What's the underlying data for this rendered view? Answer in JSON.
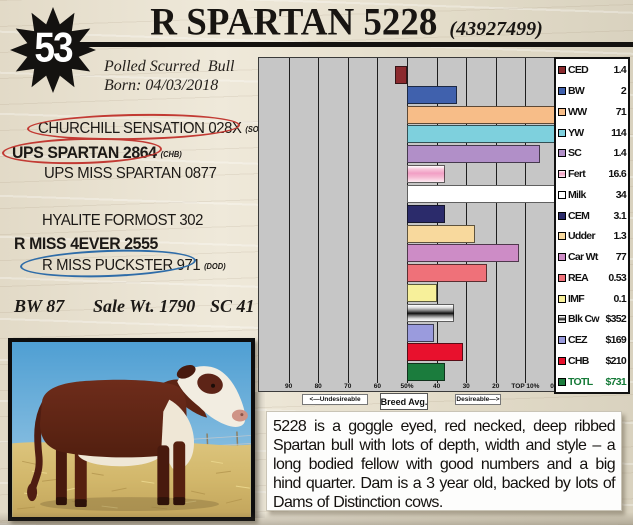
{
  "badge": {
    "lot_number": "53"
  },
  "header": {
    "title": "R SPARTAN 5228",
    "registration": "(43927499)"
  },
  "details": {
    "type_line": "Polled Scurred  Bull",
    "born_line": "Born: 04/03/2018"
  },
  "pedigree": {
    "sire_top": {
      "name": "CHURCHILL SENSATION 028X",
      "tag": "(SOD)"
    },
    "sire": {
      "name": "UPS SPARTAN 2864",
      "tag": "(CHB)"
    },
    "sire_dam": {
      "name": "UPS MISS SPARTAN 0877"
    },
    "dam_sire": {
      "name": "HYALITE FORMOST 302"
    },
    "dam": {
      "name": "R MISS 4EVER 2555"
    },
    "dam_dam": {
      "name": "R MISS PUCKSTER 971",
      "tag": "(DOD)"
    }
  },
  "stats": {
    "bw_label": "BW",
    "bw_value": "87",
    "wt_label": "Sale Wt.",
    "wt_value": "1790",
    "sc_label": "SC",
    "sc_value": "41"
  },
  "chart_data": {
    "type": "bar",
    "orientation": "horizontal",
    "note": "EPD percentile chart; bars start at breed average (50th percentile), right = more desirable (toward top 0%)",
    "axis": {
      "range_left_percentile": 100,
      "range_right_percentile": 0,
      "center_percentile": 50,
      "tick_labels": [
        "90",
        "80",
        "70",
        "60",
        "50%",
        "40",
        "30",
        "20",
        "TOP 10%",
        "0%"
      ],
      "left_caption": "<—Undesireable",
      "center_caption": "Breed Avg.",
      "right_caption": "Desireable—>"
    },
    "series": [
      {
        "label": "CED",
        "value": "1.4",
        "percentile": 54,
        "color": "#8b2a2e"
      },
      {
        "label": "BW",
        "value": "2",
        "percentile": 33,
        "color": "#4061ad"
      },
      {
        "label": "WW",
        "value": "71",
        "percentile": 0,
        "color": "#f7bd88"
      },
      {
        "label": "YW",
        "value": "114",
        "percentile": 0,
        "color": "#7ed0dd"
      },
      {
        "label": "SC",
        "value": "1.4",
        "percentile": 5,
        "color": "#b18fc8"
      },
      {
        "label": "Fert",
        "value": "16.6",
        "percentile": 37,
        "color": "#f2a2c6",
        "style": "grad-pink"
      },
      {
        "label": "Milk",
        "value": "34",
        "percentile": 0,
        "color": "#ffffff"
      },
      {
        "label": "CEM",
        "value": "3.1",
        "percentile": 37,
        "color": "#2b2b6b"
      },
      {
        "label": "Udder",
        "value": "1.3",
        "percentile": 27,
        "color": "#f8d99d"
      },
      {
        "label": "Car Wt",
        "value": "77",
        "percentile": 12,
        "color": "#cd8cc6"
      },
      {
        "label": "REA",
        "value": "0.53",
        "percentile": 23,
        "color": "#ef7179"
      },
      {
        "label": "IMF",
        "value": "0.1",
        "percentile": 40,
        "color": "#f7f09a"
      },
      {
        "label": "Blk Cw",
        "value": "$352",
        "percentile": 34,
        "color": "#9a9a9a",
        "style": "grad-steel"
      },
      {
        "label": "CEZ",
        "value": "$169",
        "percentile": 41,
        "color": "#9a9bdd"
      },
      {
        "label": "CHB",
        "value": "$210",
        "percentile": 31,
        "color": "#e8112d"
      },
      {
        "label": "TOTL",
        "value": "$731",
        "percentile": 37,
        "color": "#1b7c3d",
        "highlight": true
      }
    ],
    "highlight_color": "#157a38"
  },
  "description": {
    "text": "5228 is a goggle eyed, red necked, deep ribbed Spartan bull with lots of depth, width and style – a long bodied fellow with good numbers and a big hind quarter. Dam is a 3 year old, backed by lots of Dams of Distinction cows."
  },
  "photo": {
    "subject": "dark red Hereford bull with white face standing on straw against blue sky",
    "colors": {
      "body": "#63271a",
      "face": "#f2ede1",
      "sky": "#5aa7d8",
      "straw": "#d5bc74"
    }
  }
}
